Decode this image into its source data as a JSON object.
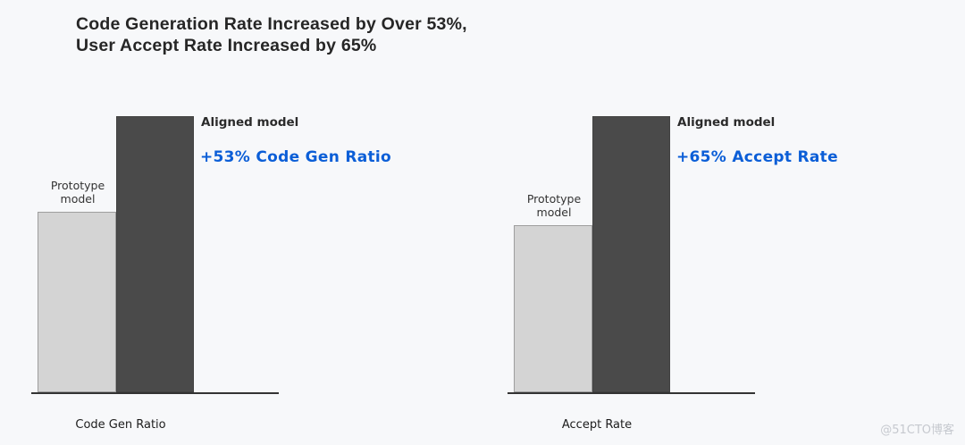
{
  "title": {
    "line1": "Code Generation Rate Increased by Over 53%,",
    "line2": "User Accept Rate Increased by 65%"
  },
  "chart_data": [
    {
      "type": "bar",
      "categories": [
        "Prototype model",
        "Aligned model"
      ],
      "values": [
        100,
        153
      ],
      "xlabel": "Code Gen Ratio",
      "annotation": "+53% Code Gen Ratio",
      "bar_colors": [
        "#d4d4d4",
        "#4a4a4a"
      ],
      "annotation_color": "#0b5ed7",
      "ylim": [
        0,
        153
      ],
      "grid": false,
      "legend_position": "none"
    },
    {
      "type": "bar",
      "categories": [
        "Prototype model",
        "Aligned model"
      ],
      "values": [
        100,
        165
      ],
      "xlabel": "Accept Rate",
      "annotation": "+65% Accept Rate",
      "bar_colors": [
        "#d4d4d4",
        "#4a4a4a"
      ],
      "annotation_color": "#0b5ed7",
      "ylim": [
        0,
        165
      ],
      "grid": false,
      "legend_position": "none"
    }
  ],
  "colors": {
    "background": "#f7f8fa",
    "title_text": "#262626",
    "dark_bar": "#4a4a4a",
    "light_bar": "#d4d4d4",
    "accent_blue": "#0b5ed7",
    "axis_line": "#333333",
    "watermark": "#c6c9cf"
  },
  "watermark": "@51CTO博客"
}
